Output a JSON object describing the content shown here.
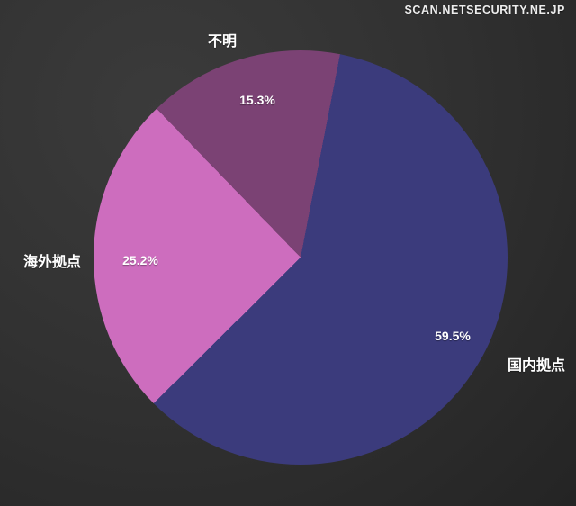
{
  "watermark": {
    "text": "SCAN.NETSECURITY.NE.JP"
  },
  "chart_data": {
    "type": "pie",
    "title": "",
    "legend_position": "none",
    "start_angle_deg": 11,
    "background_colors": {
      "inner": "#3b3b3b",
      "outer": "#242424"
    },
    "text_color": "#ffffff",
    "slices": [
      {
        "label": "国内拠点",
        "value": 59.5,
        "value_label": "59.5%",
        "color": "#3b3b7c",
        "name_outside": true
      },
      {
        "label": "海外拠点",
        "value": 25.2,
        "value_label": "25.2%",
        "color": "#cd6dbe",
        "name_outside": true
      },
      {
        "label": "不明",
        "value": 15.3,
        "value_label": "15.3%",
        "color": "#7b4274",
        "name_outside": true
      }
    ]
  }
}
